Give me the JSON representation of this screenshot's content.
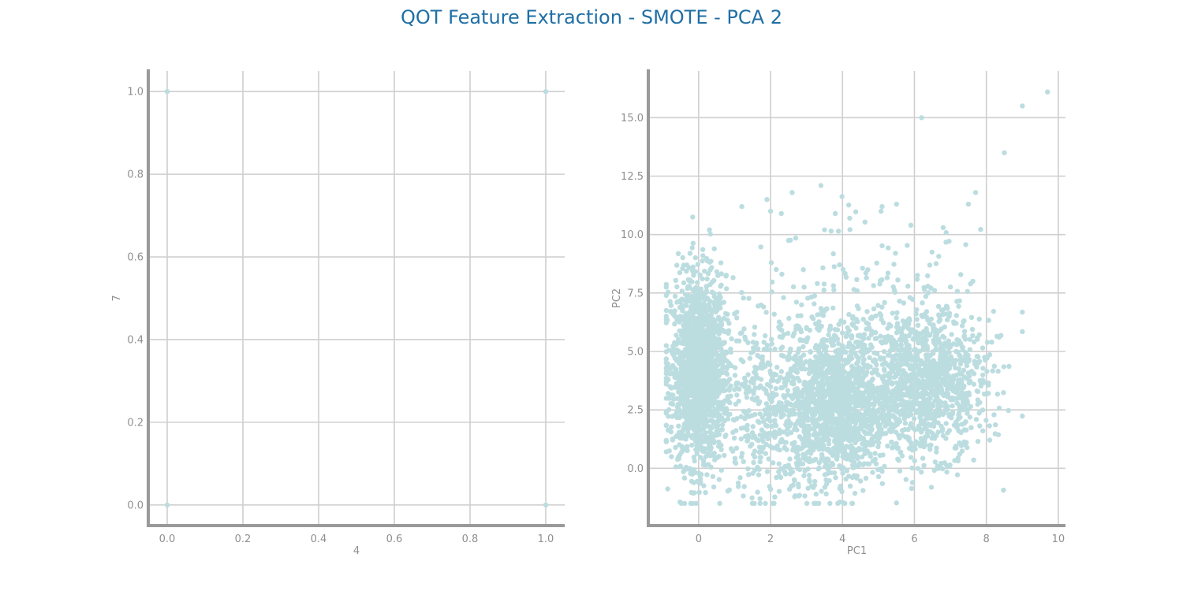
{
  "title": "QOT Feature Extraction - SMOTE - PCA 2",
  "colors": {
    "title": "#1f6fa5",
    "points": "#bcdde0",
    "grid": "#cfcfcf",
    "axis": "#999999",
    "text": "#8f8f8f"
  },
  "chart_data": [
    {
      "type": "scatter",
      "xlabel": "4",
      "ylabel": "7",
      "xlim": [
        -0.05,
        1.05
      ],
      "ylim": [
        -0.05,
        1.05
      ],
      "xticks": [
        "0.0",
        "0.2",
        "0.4",
        "0.6",
        "0.8",
        "1.0"
      ],
      "yticks": [
        "0.0",
        "0.2",
        "0.4",
        "0.6",
        "0.8",
        "1.0"
      ],
      "grid": true,
      "points": [
        [
          0,
          0
        ],
        [
          0,
          1
        ],
        [
          1,
          0
        ],
        [
          1,
          1
        ]
      ]
    },
    {
      "type": "scatter",
      "xlabel": "PC1",
      "ylabel": "PC2",
      "xlim": [
        -1.4,
        10.2
      ],
      "ylim": [
        -2.45,
        17
      ],
      "xticks": [
        "0",
        "2",
        "4",
        "6",
        "8",
        "10"
      ],
      "yticks": [
        "0.0",
        "2.5",
        "5.0",
        "7.5",
        "10.0",
        "12.5",
        "15.0"
      ],
      "grid": true,
      "clusters": [
        {
          "center": [
            0.0,
            4.2
          ],
          "spread": [
            0.38,
            2.0
          ],
          "count": 1700
        },
        {
          "center": [
            3.8,
            2.6
          ],
          "spread": [
            0.75,
            1.6
          ],
          "count": 1400
        },
        {
          "center": [
            6.3,
            3.6
          ],
          "spread": [
            0.85,
            1.5
          ],
          "count": 1100
        },
        {
          "center": [
            1.8,
            2.5
          ],
          "spread": [
            0.75,
            2.0
          ],
          "count": 350
        },
        {
          "center": [
            4.5,
            6.0
          ],
          "spread": [
            1.8,
            2.0
          ],
          "count": 260
        }
      ],
      "outliers": [
        [
          6.2,
          15.0
        ],
        [
          9.0,
          15.5
        ],
        [
          9.7,
          16.1
        ],
        [
          8.5,
          13.5
        ],
        [
          3.4,
          12.1
        ],
        [
          2.6,
          11.8
        ],
        [
          7.7,
          11.8
        ],
        [
          7.5,
          11.3
        ],
        [
          1.9,
          11.5
        ],
        [
          5.5,
          11.3
        ],
        [
          5.1,
          11.2
        ],
        [
          1.2,
          11.2
        ],
        [
          2.0,
          11.0
        ],
        [
          2.3,
          10.9
        ],
        [
          3.8,
          10.9
        ],
        [
          4.2,
          10.7
        ],
        [
          6.8,
          10.3
        ],
        [
          0.3,
          10.2
        ],
        [
          3.5,
          10.2
        ],
        [
          5.9,
          10.4
        ]
      ]
    }
  ]
}
